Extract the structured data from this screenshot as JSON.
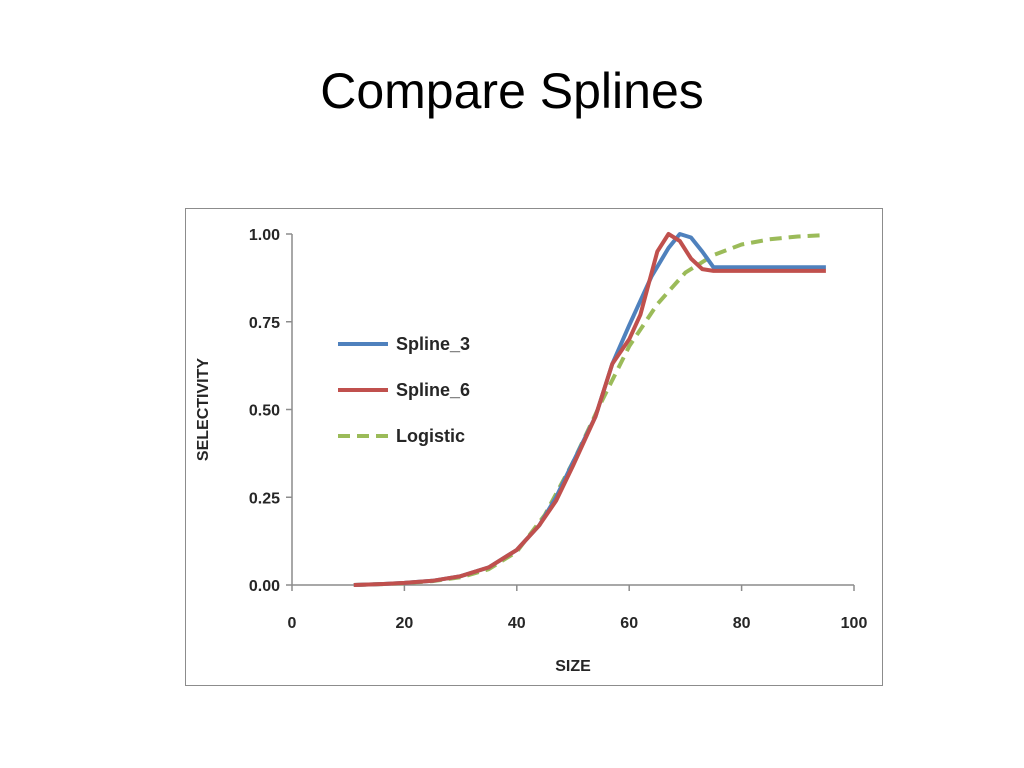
{
  "slide": {
    "title": "Compare Splines"
  },
  "chart_data": {
    "type": "line",
    "title": "",
    "xlabel": "SIZE",
    "ylabel": "SELECTIVITY",
    "xlim": [
      0,
      100
    ],
    "ylim": [
      0,
      1
    ],
    "x_ticks": [
      0,
      20,
      40,
      60,
      80,
      100
    ],
    "x_tick_labels": [
      "0",
      "20",
      "40",
      "60",
      "80",
      "100"
    ],
    "y_ticks": [
      0,
      0.25,
      0.5,
      0.75,
      1.0
    ],
    "y_tick_labels": [
      "0.00",
      "0.25",
      "0.50",
      "0.75",
      "1.00"
    ],
    "grid": false,
    "legend_position": "upper-left",
    "series": [
      {
        "name": "Spline_3",
        "color": "#4f81bd",
        "dash": "solid",
        "points": [
          [
            11,
            0
          ],
          [
            15,
            0.002
          ],
          [
            20,
            0.006
          ],
          [
            25,
            0.012
          ],
          [
            30,
            0.025
          ],
          [
            35,
            0.05
          ],
          [
            40,
            0.1
          ],
          [
            44,
            0.17
          ],
          [
            47,
            0.25
          ],
          [
            50,
            0.35
          ],
          [
            54,
            0.48
          ],
          [
            57,
            0.63
          ],
          [
            60,
            0.74
          ],
          [
            64,
            0.88
          ],
          [
            67,
            0.96
          ],
          [
            69,
            1.0
          ],
          [
            71,
            0.99
          ],
          [
            73,
            0.95
          ],
          [
            75,
            0.905
          ],
          [
            95,
            0.905
          ]
        ]
      },
      {
        "name": "Spline_6",
        "color": "#c0504d",
        "dash": "solid",
        "points": [
          [
            11,
            0
          ],
          [
            15,
            0.002
          ],
          [
            20,
            0.006
          ],
          [
            25,
            0.012
          ],
          [
            30,
            0.025
          ],
          [
            35,
            0.05
          ],
          [
            40,
            0.1
          ],
          [
            44,
            0.17
          ],
          [
            47,
            0.24
          ],
          [
            50,
            0.34
          ],
          [
            54,
            0.48
          ],
          [
            57,
            0.63
          ],
          [
            60,
            0.7
          ],
          [
            62,
            0.77
          ],
          [
            65,
            0.95
          ],
          [
            67,
            1.0
          ],
          [
            69,
            0.98
          ],
          [
            71,
            0.93
          ],
          [
            73,
            0.9
          ],
          [
            75,
            0.895
          ],
          [
            95,
            0.895
          ]
        ]
      },
      {
        "name": "Logistic",
        "color": "#9bbb59",
        "dash": "dashed",
        "points": [
          [
            11,
            0
          ],
          [
            15,
            0.002
          ],
          [
            20,
            0.005
          ],
          [
            25,
            0.011
          ],
          [
            30,
            0.022
          ],
          [
            35,
            0.045
          ],
          [
            40,
            0.095
          ],
          [
            45,
            0.2
          ],
          [
            50,
            0.35
          ],
          [
            55,
            0.52
          ],
          [
            60,
            0.68
          ],
          [
            65,
            0.8
          ],
          [
            70,
            0.89
          ],
          [
            75,
            0.94
          ],
          [
            80,
            0.97
          ],
          [
            85,
            0.985
          ],
          [
            90,
            0.993
          ],
          [
            95,
            0.997
          ]
        ]
      }
    ]
  }
}
